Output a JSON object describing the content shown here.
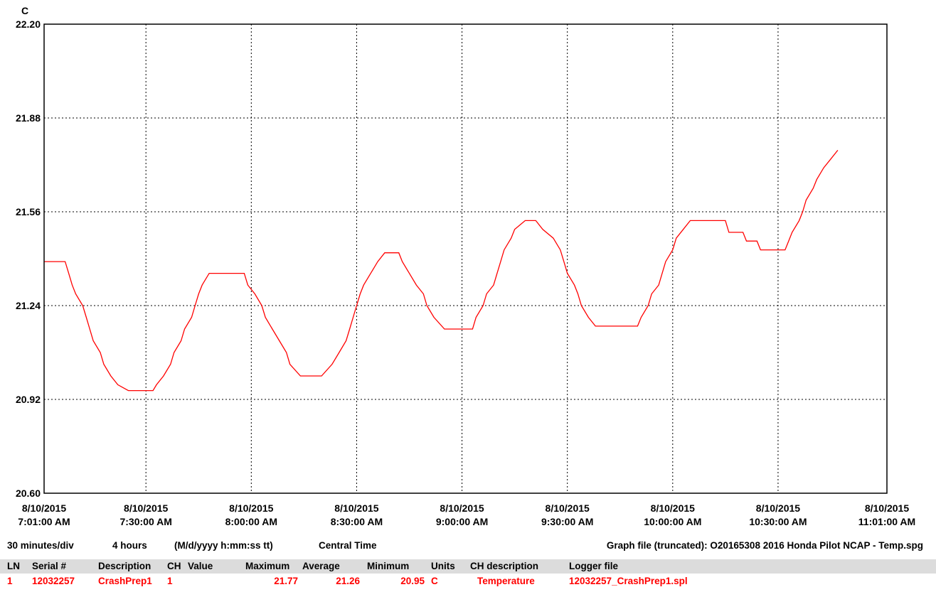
{
  "chart_data": {
    "type": "line",
    "y_unit": "C",
    "ylim": [
      20.6,
      22.2
    ],
    "y_ticks": [
      "22.20",
      "21.88",
      "21.56",
      "21.24",
      "20.92",
      "20.60"
    ],
    "x_range": [
      "2015-08-10T07:01:00",
      "2015-08-10T11:01:00"
    ],
    "x_ticks": [
      {
        "date": "8/10/2015",
        "time": "7:01:00 AM"
      },
      {
        "date": "8/10/2015",
        "time": "7:30:00 AM"
      },
      {
        "date": "8/10/2015",
        "time": "8:00:00 AM"
      },
      {
        "date": "8/10/2015",
        "time": "8:30:00 AM"
      },
      {
        "date": "8/10/2015",
        "time": "9:00:00 AM"
      },
      {
        "date": "8/10/2015",
        "time": "9:30:00 AM"
      },
      {
        "date": "8/10/2015",
        "time": "10:00:00 AM"
      },
      {
        "date": "8/10/2015",
        "time": "10:30:00 AM"
      },
      {
        "date": "8/10/2015",
        "time": "11:01:00 AM"
      }
    ],
    "grid": true,
    "series": [
      {
        "color": "#ff0000",
        "points": [
          [
            "07:01",
            21.39
          ],
          [
            "07:07",
            21.39
          ],
          [
            "07:08",
            21.35
          ],
          [
            "07:09",
            21.31
          ],
          [
            "07:10",
            21.28
          ],
          [
            "07:12",
            21.24
          ],
          [
            "07:13",
            21.2
          ],
          [
            "07:14",
            21.16
          ],
          [
            "07:15",
            21.12
          ],
          [
            "07:17",
            21.08
          ],
          [
            "07:18",
            21.04
          ],
          [
            "07:20",
            21.0
          ],
          [
            "07:22",
            20.97
          ],
          [
            "07:25",
            20.95
          ],
          [
            "07:32",
            20.95
          ],
          [
            "07:33",
            20.97
          ],
          [
            "07:35",
            21.0
          ],
          [
            "07:37",
            21.04
          ],
          [
            "07:38",
            21.08
          ],
          [
            "07:40",
            21.12
          ],
          [
            "07:41",
            21.16
          ],
          [
            "07:43",
            21.2
          ],
          [
            "07:44",
            21.24
          ],
          [
            "07:45",
            21.28
          ],
          [
            "07:46",
            21.31
          ],
          [
            "07:48",
            21.35
          ],
          [
            "07:58",
            21.35
          ],
          [
            "07:59",
            21.31
          ],
          [
            "08:01",
            21.28
          ],
          [
            "08:03",
            21.24
          ],
          [
            "08:04",
            21.2
          ],
          [
            "08:06",
            21.16
          ],
          [
            "08:08",
            21.12
          ],
          [
            "08:10",
            21.08
          ],
          [
            "08:11",
            21.04
          ],
          [
            "08:14",
            21.0
          ],
          [
            "08:20",
            21.0
          ],
          [
            "08:23",
            21.04
          ],
          [
            "08:25",
            21.08
          ],
          [
            "08:27",
            21.12
          ],
          [
            "08:28",
            21.16
          ],
          [
            "08:29",
            21.2
          ],
          [
            "08:30",
            21.24
          ],
          [
            "08:31",
            21.28
          ],
          [
            "08:32",
            21.31
          ],
          [
            "08:34",
            21.35
          ],
          [
            "08:36",
            21.39
          ],
          [
            "08:38",
            21.42
          ],
          [
            "08:42",
            21.42
          ],
          [
            "08:43",
            21.39
          ],
          [
            "08:45",
            21.35
          ],
          [
            "08:47",
            21.31
          ],
          [
            "08:49",
            21.28
          ],
          [
            "08:50",
            21.24
          ],
          [
            "08:52",
            21.2
          ],
          [
            "08:55",
            21.16
          ],
          [
            "09:00",
            21.16
          ],
          [
            "09:03",
            21.16
          ],
          [
            "09:04",
            21.2
          ],
          [
            "09:06",
            21.24
          ],
          [
            "09:07",
            21.28
          ],
          [
            "09:09",
            21.31
          ],
          [
            "09:10",
            21.35
          ],
          [
            "09:11",
            21.39
          ],
          [
            "09:12",
            21.43
          ],
          [
            "09:14",
            21.47
          ],
          [
            "09:15",
            21.5
          ],
          [
            "09:18",
            21.53
          ],
          [
            "09:21",
            21.53
          ],
          [
            "09:23",
            21.5
          ],
          [
            "09:26",
            21.47
          ],
          [
            "09:28",
            21.43
          ],
          [
            "09:29",
            21.39
          ],
          [
            "09:30",
            21.35
          ],
          [
            "09:32",
            21.31
          ],
          [
            "09:33",
            21.28
          ],
          [
            "09:34",
            21.24
          ],
          [
            "09:36",
            21.2
          ],
          [
            "09:38",
            21.17
          ],
          [
            "09:50",
            21.17
          ],
          [
            "09:51",
            21.2
          ],
          [
            "09:53",
            21.24
          ],
          [
            "09:54",
            21.28
          ],
          [
            "09:56",
            21.31
          ],
          [
            "09:57",
            21.35
          ],
          [
            "09:58",
            21.39
          ],
          [
            "10:00",
            21.43
          ],
          [
            "10:01",
            21.47
          ],
          [
            "10:03",
            21.5
          ],
          [
            "10:05",
            21.53
          ],
          [
            "10:15",
            21.53
          ],
          [
            "10:16",
            21.49
          ],
          [
            "10:20",
            21.49
          ],
          [
            "10:21",
            21.46
          ],
          [
            "10:24",
            21.46
          ],
          [
            "10:25",
            21.43
          ],
          [
            "10:29",
            21.43
          ],
          [
            "10:32",
            21.43
          ],
          [
            "10:33",
            21.46
          ],
          [
            "10:34",
            21.49
          ],
          [
            "10:36",
            21.53
          ],
          [
            "10:37",
            21.56
          ],
          [
            "10:38",
            21.6
          ],
          [
            "10:40",
            21.64
          ],
          [
            "10:41",
            21.67
          ],
          [
            "10:43",
            21.71
          ],
          [
            "10:45",
            21.74
          ],
          [
            "10:47",
            21.77
          ]
        ]
      }
    ]
  },
  "status": {
    "per_div": "30 minutes/div",
    "span": "4 hours",
    "date_format": "(M/d/yyyy h:mm:ss tt)",
    "timezone": "Central Time",
    "graph_file": "Graph file (truncated): O20165308 2016 Honda Pilot NCAP - Temp.spg"
  },
  "legend": {
    "headers": {
      "ln": "LN",
      "serial": "Serial #",
      "description": "Description",
      "ch": "CH",
      "value": "Value",
      "maximum": "Maximum",
      "average": "Average",
      "minimum": "Minimum",
      "units": "Units",
      "ch_description": "CH description",
      "logger_file": "Logger file"
    },
    "row": {
      "ln": "1",
      "serial": "12032257",
      "description": "CrashPrep1",
      "ch": "1",
      "value": "",
      "maximum": "21.77",
      "average": "21.26",
      "minimum": "20.95",
      "units": "C",
      "ch_description": "Temperature",
      "logger_file": "12032257_CrashPrep1.spl",
      "color": "#ff0000"
    }
  }
}
